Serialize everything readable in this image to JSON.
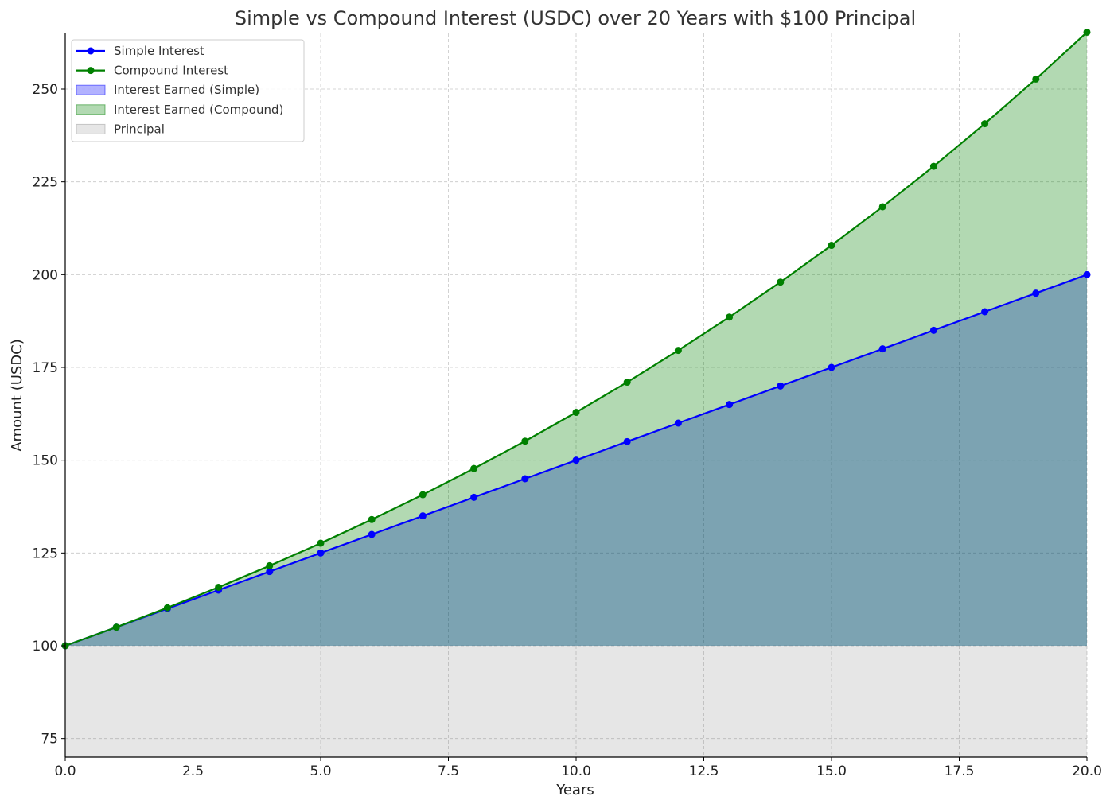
{
  "chart_data": {
    "type": "line",
    "title": "Simple vs Compound Interest (USDC) over 20 Years with $100 Principal",
    "xlabel": "Years",
    "ylabel": "Amount (USDC)",
    "xlim": [
      0,
      20
    ],
    "ylim": [
      70,
      265
    ],
    "x_ticks": [
      0.0,
      2.5,
      5.0,
      7.5,
      10.0,
      12.5,
      15.0,
      17.5,
      20.0
    ],
    "x_tick_labels": [
      "0.0",
      "2.5",
      "5.0",
      "7.5",
      "10.0",
      "12.5",
      "15.0",
      "17.5",
      "20.0"
    ],
    "y_ticks": [
      75,
      100,
      125,
      150,
      175,
      200,
      225,
      250
    ],
    "y_tick_labels": [
      "75",
      "100",
      "125",
      "150",
      "175",
      "200",
      "225",
      "250"
    ],
    "grid": true,
    "legend_position": "top-left",
    "principal": 100,
    "x": [
      0,
      1,
      2,
      3,
      4,
      5,
      6,
      7,
      8,
      9,
      10,
      11,
      12,
      13,
      14,
      15,
      16,
      17,
      18,
      19,
      20
    ],
    "series": [
      {
        "name": "Simple Interest",
        "color": "#0000ff",
        "values": [
          100,
          105,
          110,
          115,
          120,
          125,
          130,
          135,
          140,
          145,
          150,
          155,
          160,
          165,
          170,
          175,
          180,
          185,
          190,
          195,
          200
        ]
      },
      {
        "name": "Compound Interest",
        "color": "#008000",
        "values": [
          100,
          105,
          110.25,
          115.76,
          121.55,
          127.63,
          134.01,
          140.71,
          147.75,
          155.13,
          162.89,
          171.03,
          179.59,
          188.56,
          197.99,
          207.89,
          218.29,
          229.2,
          240.66,
          252.7,
          265.33
        ]
      }
    ],
    "fills": [
      {
        "name": "Interest Earned (Simple)",
        "color": "#0000ff",
        "opacity": 0.3
      },
      {
        "name": "Interest Earned (Compound)",
        "color": "#008000",
        "opacity": 0.3
      },
      {
        "name": "Principal",
        "color": "#808080",
        "opacity": 0.2
      }
    ]
  }
}
